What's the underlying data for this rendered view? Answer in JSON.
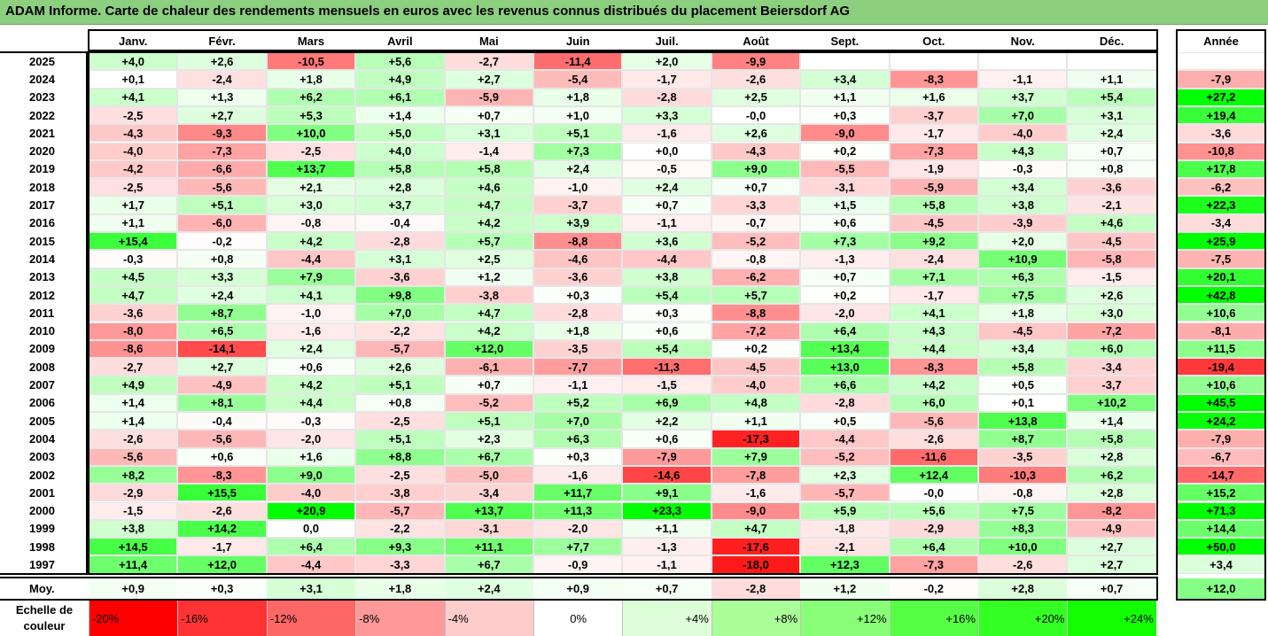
{
  "title": "ADAM Informe. Carte de chaleur des rendements mensuels en euros avec les revenus connus distribués du placement Beiersdorf AG",
  "chart_data": {
    "type": "heatmap",
    "columns": [
      "Janv.",
      "Févr.",
      "Mars",
      "Avril",
      "Mai",
      "Juin",
      "Juil.",
      "Août",
      "Sept.",
      "Oct.",
      "Nov.",
      "Déc."
    ],
    "annual_header": "Année",
    "average_label": "Moy.",
    "rows": [
      {
        "year": "2025",
        "values": [
          "+4,0",
          "+2,6",
          "-10,5",
          "+5,6",
          "-2,7",
          "-11,4",
          "+2,0",
          "-9,9",
          "",
          "",
          "",
          ""
        ],
        "annual": ""
      },
      {
        "year": "2024",
        "values": [
          "+0,1",
          "-2,4",
          "+1,8",
          "+4,9",
          "+2,7",
          "-5,4",
          "-1,7",
          "-2,6",
          "+3,4",
          "-8,3",
          "-1,1",
          "+1,1"
        ],
        "annual": "-7,9"
      },
      {
        "year": "2023",
        "values": [
          "+4,1",
          "+1,3",
          "+6,2",
          "+6,1",
          "-5,9",
          "+1,8",
          "-2,8",
          "+2,5",
          "+1,1",
          "+1,6",
          "+3,7",
          "+5,4"
        ],
        "annual": "+27,2"
      },
      {
        "year": "2022",
        "values": [
          "-2,5",
          "+2,7",
          "+5,3",
          "+1,4",
          "+0,7",
          "+1,0",
          "+3,3",
          "-0,0",
          "+0,3",
          "-3,7",
          "+7,0",
          "+3,1"
        ],
        "annual": "+19,4"
      },
      {
        "year": "2021",
        "values": [
          "-4,3",
          "-9,3",
          "+10,0",
          "+5,0",
          "+3,1",
          "+5,1",
          "-1,6",
          "+2,6",
          "-9,0",
          "-1,7",
          "-4,0",
          "+2,4"
        ],
        "annual": "-3,6"
      },
      {
        "year": "2020",
        "values": [
          "-4,0",
          "-7,3",
          "-2,5",
          "+4,0",
          "-1,4",
          "+7,3",
          "+0,0",
          "-4,3",
          "+0,2",
          "-7,3",
          "+4,3",
          "+0,7"
        ],
        "annual": "-10,8"
      },
      {
        "year": "2019",
        "values": [
          "-4,2",
          "-6,6",
          "+13,7",
          "+5,8",
          "+5,8",
          "+2,4",
          "-0,5",
          "+9,0",
          "-5,5",
          "-1,9",
          "-0,3",
          "+0,8"
        ],
        "annual": "+17,8"
      },
      {
        "year": "2018",
        "values": [
          "-2,5",
          "-5,6",
          "+2,1",
          "+2,8",
          "+4,6",
          "-1,0",
          "+2,4",
          "+0,7",
          "-3,1",
          "-5,9",
          "+3,4",
          "-3,6"
        ],
        "annual": "-6,2"
      },
      {
        "year": "2017",
        "values": [
          "+1,7",
          "+5,1",
          "+3,0",
          "+3,7",
          "+4,7",
          "-3,7",
          "+0,7",
          "-3,3",
          "+1,5",
          "+5,8",
          "+3,8",
          "-2,1"
        ],
        "annual": "+22,3"
      },
      {
        "year": "2016",
        "values": [
          "+1,1",
          "-6,0",
          "-0,8",
          "-0,4",
          "+4,2",
          "+3,9",
          "-1,1",
          "-0,7",
          "+0,6",
          "-4,5",
          "-3,9",
          "+4,6"
        ],
        "annual": "-3,4"
      },
      {
        "year": "2015",
        "values": [
          "+15,4",
          "-0,2",
          "+4,2",
          "-2,8",
          "+5,7",
          "-8,8",
          "+3,6",
          "-5,2",
          "+7,3",
          "+9,2",
          "+2,0",
          "-4,5"
        ],
        "annual": "+25,9"
      },
      {
        "year": "2014",
        "values": [
          "-0,3",
          "+0,8",
          "-4,4",
          "+3,1",
          "+2,5",
          "-4,6",
          "-4,4",
          "-0,8",
          "-1,3",
          "-2,4",
          "+10,9",
          "-5,8"
        ],
        "annual": "-7,5"
      },
      {
        "year": "2013",
        "values": [
          "+4,5",
          "+3,3",
          "+7,9",
          "-3,6",
          "+1,2",
          "-3,6",
          "+3,8",
          "-6,2",
          "+0,7",
          "+7,1",
          "+6,3",
          "-1,5"
        ],
        "annual": "+20,1"
      },
      {
        "year": "2012",
        "values": [
          "+4,7",
          "+2,4",
          "+4,1",
          "+9,8",
          "-3,8",
          "+0,3",
          "+5,4",
          "+5,7",
          "+0,2",
          "-1,7",
          "+7,5",
          "+2,6"
        ],
        "annual": "+42,8"
      },
      {
        "year": "2011",
        "values": [
          "-3,6",
          "+8,7",
          "-1,0",
          "+7,0",
          "+4,7",
          "-2,8",
          "+0,3",
          "-8,8",
          "-2,0",
          "+4,1",
          "+1,8",
          "+3,0"
        ],
        "annual": "+10,6"
      },
      {
        "year": "2010",
        "values": [
          "-8,0",
          "+6,5",
          "-1,6",
          "-2,2",
          "+4,2",
          "+1,8",
          "+0,6",
          "-7,2",
          "+6,4",
          "+4,3",
          "-4,5",
          "-7,2"
        ],
        "annual": "-8,1"
      },
      {
        "year": "2009",
        "values": [
          "-8,6",
          "-14,1",
          "+2,4",
          "-5,7",
          "+12,0",
          "-3,5",
          "+5,4",
          "+0,2",
          "+13,4",
          "+4,4",
          "+3,4",
          "+6,0"
        ],
        "annual": "+11,5"
      },
      {
        "year": "2008",
        "values": [
          "-2,7",
          "+2,7",
          "+0,6",
          "+2,6",
          "-6,1",
          "-7,7",
          "-11,3",
          "-4,5",
          "+13,0",
          "-8,3",
          "+5,8",
          "-3,4"
        ],
        "annual": "-19,4"
      },
      {
        "year": "2007",
        "values": [
          "+4,9",
          "-4,9",
          "+4,2",
          "+5,1",
          "+0,7",
          "-1,1",
          "-1,5",
          "-4,0",
          "+6,6",
          "+4,2",
          "+0,5",
          "-3,7"
        ],
        "annual": "+10,6"
      },
      {
        "year": "2006",
        "values": [
          "+1,4",
          "+8,1",
          "+4,4",
          "+0,8",
          "-5,2",
          "+5,2",
          "+6,9",
          "+4,8",
          "-2,8",
          "+6,0",
          "+0,1",
          "+10,2"
        ],
        "annual": "+45,5"
      },
      {
        "year": "2005",
        "values": [
          "+1,4",
          "-0,4",
          "-0,3",
          "-2,5",
          "+5,1",
          "+7,0",
          "+2,2",
          "+1,1",
          "+0,5",
          "-5,6",
          "+13,8",
          "+1,4"
        ],
        "annual": "+24,2"
      },
      {
        "year": "2004",
        "values": [
          "-2,6",
          "-5,6",
          "-2,0",
          "+5,1",
          "+2,3",
          "+6,3",
          "+0,6",
          "-17,3",
          "-4,4",
          "-2,6",
          "+8,7",
          "+5,8"
        ],
        "annual": "-7,9"
      },
      {
        "year": "2003",
        "values": [
          "-5,6",
          "+0,6",
          "+1,6",
          "+8,8",
          "+6,7",
          "+0,3",
          "-7,9",
          "+7,9",
          "-5,2",
          "-11,6",
          "-3,5",
          "+2,8"
        ],
        "annual": "-6,7"
      },
      {
        "year": "2002",
        "values": [
          "+8,2",
          "-8,3",
          "+9,0",
          "-2,5",
          "-5,0",
          "-1,6",
          "-14,6",
          "-7,8",
          "+2,3",
          "+12,4",
          "-10,3",
          "+6,2"
        ],
        "annual": "-14,7"
      },
      {
        "year": "2001",
        "values": [
          "-2,9",
          "+15,5",
          "-4,0",
          "-3,8",
          "-3,4",
          "+11,7",
          "+9,1",
          "-1,6",
          "-5,7",
          "-0,0",
          "-0,8",
          "+2,8"
        ],
        "annual": "+15,2"
      },
      {
        "year": "2000",
        "values": [
          "-1,5",
          "-2,6",
          "+20,9",
          "-5,7",
          "+13,7",
          "+11,3",
          "+23,3",
          "-9,0",
          "+5,9",
          "+5,6",
          "+7,5",
          "-8,2"
        ],
        "annual": "+71,3"
      },
      {
        "year": "1999",
        "values": [
          "+3,8",
          "+14,2",
          "0,0",
          "-2,2",
          "-3,1",
          "-2,0",
          "+1,1",
          "+4,7",
          "-1,8",
          "-2,9",
          "+8,3",
          "-4,9"
        ],
        "annual": "+14,4"
      },
      {
        "year": "1998",
        "values": [
          "+14,5",
          "-1,7",
          "+6,4",
          "+9,3",
          "+11,1",
          "+7,7",
          "-1,3",
          "-17,6",
          "-2,1",
          "+6,4",
          "+10,0",
          "+2,7"
        ],
        "annual": "+50,0"
      },
      {
        "year": "1997",
        "values": [
          "+11,4",
          "+12,0",
          "-4,4",
          "-3,3",
          "+6,7",
          "-0,9",
          "-1,1",
          "-18,0",
          "+12,3",
          "-7,3",
          "-2,6",
          "+2,7"
        ],
        "annual": "+3,4"
      }
    ],
    "averages": [
      "+0,9",
      "+0,3",
      "+3,1",
      "+1,8",
      "+2,4",
      "+0,9",
      "+0,7",
      "-2,8",
      "+1,2",
      "-0,2",
      "+2,8",
      "+0,7"
    ],
    "average_annual": "+12,0",
    "legend": {
      "label_line1": "Echelle de",
      "label_line2": "couleur",
      "items": [
        {
          "label": "-20%",
          "value": -20,
          "color": "#ff0000"
        },
        {
          "label": "-16%",
          "value": -16,
          "color": "#ff3333"
        },
        {
          "label": "-12%",
          "value": -12,
          "color": "#ff6666"
        },
        {
          "label": "-8%",
          "value": -8,
          "color": "#ff9999"
        },
        {
          "label": "-4%",
          "value": -4,
          "color": "#ffcccc"
        },
        {
          "label": "0%",
          "value": 0,
          "color": "#ffffff"
        },
        {
          "label": "+4%",
          "value": 4,
          "color": "#ddffd8"
        },
        {
          "label": "+8%",
          "value": 8,
          "color": "#aaff99"
        },
        {
          "label": "+12%",
          "value": 12,
          "color": "#88ff77"
        },
        {
          "label": "+16%",
          "value": 16,
          "color": "#55ff44"
        },
        {
          "label": "+20%",
          "value": 20,
          "color": "#33ff22"
        },
        {
          "label": "+24%",
          "value": 24,
          "color": "#11ff00"
        }
      ]
    },
    "colors": {
      "negative_max": "#ff0000",
      "positive_max": "#00ff00",
      "neutral": "#ffffff",
      "title_bg": "#8ccf7f"
    }
  }
}
